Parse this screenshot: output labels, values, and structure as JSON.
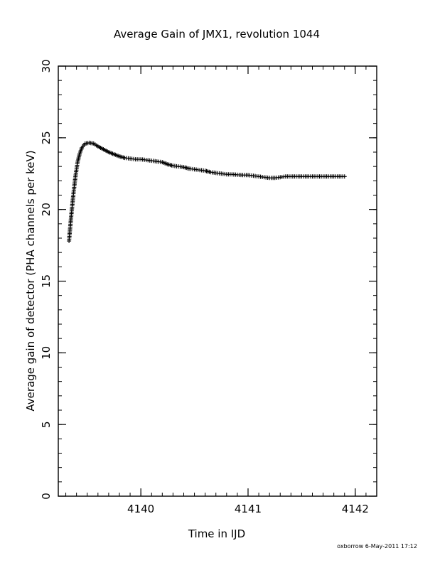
{
  "chart_data": {
    "type": "scatter",
    "title": "Average Gain of JMX1, revolution 1044",
    "xlabel": "Time in IJD",
    "ylabel": "Average gain of detector (PHA channels per keV)",
    "xlim": [
      4139.23,
      4142.2
    ],
    "ylim": [
      0,
      30
    ],
    "x_ticks": [
      4140,
      4141,
      4142
    ],
    "y_ticks": [
      0,
      5,
      10,
      15,
      20,
      25,
      30
    ],
    "marker": "+",
    "grid": false,
    "series": [
      {
        "x": [
          4139.33,
          4139.35,
          4139.37,
          4139.39,
          4139.41,
          4139.43,
          4139.45,
          4139.48,
          4139.52,
          4139.56,
          4139.6,
          4139.65,
          4139.7,
          4139.75,
          4139.8,
          4139.85,
          4139.9,
          4139.95,
          4140.0,
          4140.05,
          4140.1,
          4140.15,
          4140.2,
          4140.25,
          4140.3,
          4140.35,
          4140.4,
          4140.45,
          4140.5,
          4140.55,
          4140.6,
          4140.65,
          4140.7,
          4140.75,
          4140.8,
          4140.85,
          4140.9,
          4140.95,
          4141.0,
          4141.05,
          4141.1,
          4141.15,
          4141.2,
          4141.25,
          4141.3,
          4141.35,
          4141.4,
          4141.45,
          4141.5,
          4141.55,
          4141.6,
          4141.65,
          4141.7,
          4141.75,
          4141.8,
          4141.85,
          4141.9
        ],
        "y": [
          17.8,
          19.5,
          21.0,
          22.3,
          23.3,
          23.9,
          24.3,
          24.6,
          24.65,
          24.6,
          24.4,
          24.2,
          24.0,
          23.85,
          23.7,
          23.6,
          23.55,
          23.5,
          23.5,
          23.45,
          23.4,
          23.35,
          23.3,
          23.15,
          23.05,
          23.0,
          22.95,
          22.85,
          22.8,
          22.75,
          22.7,
          22.6,
          22.55,
          22.5,
          22.45,
          22.45,
          22.42,
          22.4,
          22.4,
          22.35,
          22.3,
          22.25,
          22.2,
          22.2,
          22.25,
          22.3,
          22.3,
          22.3,
          22.3,
          22.3,
          22.3,
          22.3,
          22.3,
          22.3,
          22.3,
          22.3,
          22.3
        ]
      }
    ]
  },
  "footer": {
    "credit": "oxborrow  6-May-2011 17:12"
  },
  "colors": {
    "foreground": "#000000",
    "background": "#ffffff"
  }
}
